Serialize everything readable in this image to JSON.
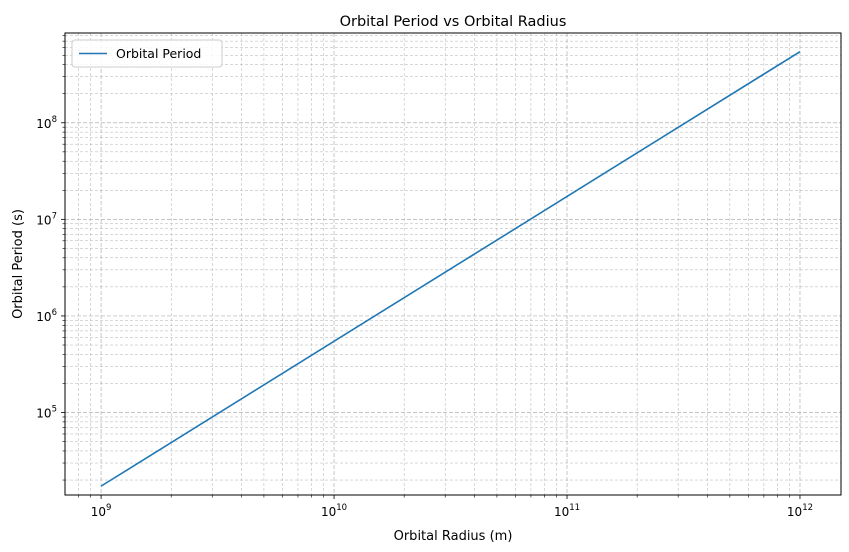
{
  "chart_data": {
    "type": "line",
    "title": "Orbital Period vs Orbital Radius",
    "xlabel": "Orbital Radius (m)",
    "ylabel": "Orbital Period (s)",
    "xscale": "log",
    "yscale": "log",
    "xlim": [
      700000000,
      1500000000000
    ],
    "ylim": [
      14000,
      850000000
    ],
    "grid": "both-major-minor-dashed",
    "legend_position": "top-left",
    "x_ticks": [
      {
        "base": "10",
        "exp": "9",
        "value": 1000000000
      },
      {
        "base": "10",
        "exp": "10",
        "value": 10000000000
      },
      {
        "base": "10",
        "exp": "11",
        "value": 100000000000
      },
      {
        "base": "10",
        "exp": "12",
        "value": 1000000000000
      }
    ],
    "y_ticks": [
      {
        "base": "10",
        "exp": "5",
        "value": 100000
      },
      {
        "base": "10",
        "exp": "6",
        "value": 1000000
      },
      {
        "base": "10",
        "exp": "7",
        "value": 10000000
      },
      {
        "base": "10",
        "exp": "8",
        "value": 100000000
      }
    ],
    "series": [
      {
        "name": "Orbital Period",
        "color": "#1f77b4",
        "x": [
          1000000000,
          1000000000000
        ],
        "y": [
          17300,
          545000000
        ]
      }
    ]
  }
}
